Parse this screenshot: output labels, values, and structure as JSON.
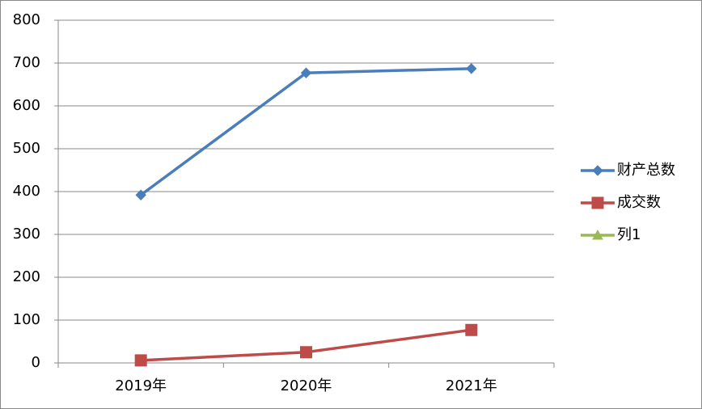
{
  "chart_data": {
    "type": "line",
    "categories": [
      "2019年",
      "2020年",
      "2021年"
    ],
    "series": [
      {
        "name": "财产总数",
        "color": "#4a7ebb",
        "marker": "diamond",
        "values": [
          392,
          677,
          687
        ]
      },
      {
        "name": "成交数",
        "color": "#be4b48",
        "marker": "square",
        "values": [
          6,
          25,
          77
        ]
      },
      {
        "name": "列1",
        "color": "#98b954",
        "marker": "triangle",
        "values": [
          null,
          null,
          null
        ]
      }
    ],
    "ylim": [
      0,
      800
    ],
    "yticks": [
      0,
      100,
      200,
      300,
      400,
      500,
      600,
      700,
      800
    ],
    "grid": true,
    "legend": "right"
  }
}
